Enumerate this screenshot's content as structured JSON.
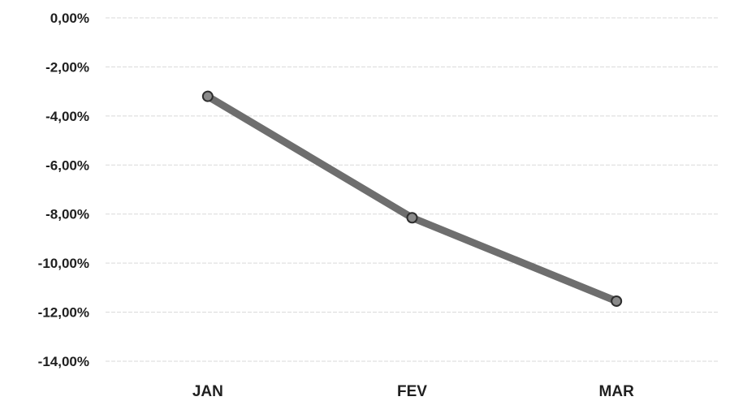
{
  "chart_data": {
    "type": "line",
    "categories": [
      "JAN",
      "FEV",
      "MAR"
    ],
    "series": [
      {
        "values": [
          -3.2,
          -8.15,
          -11.55
        ]
      }
    ],
    "y_tick_labels": [
      "0,00%",
      "-2,00%",
      "-4,00%",
      "-6,00%",
      "-8,00%",
      "-10,00%",
      "-12,00%",
      "-14,00%"
    ],
    "y_ticks": [
      0,
      -2,
      -4,
      -6,
      -8,
      -10,
      -12,
      -14
    ],
    "ylim": [
      -14,
      0
    ],
    "grid": true,
    "legend": "none",
    "colors": {
      "line": "#6e6e6e",
      "marker_fill": "#8a8a8a",
      "marker_stroke": "#2e2e2e",
      "grid": "#d9d9d9",
      "text": "#1f1f1f"
    }
  }
}
